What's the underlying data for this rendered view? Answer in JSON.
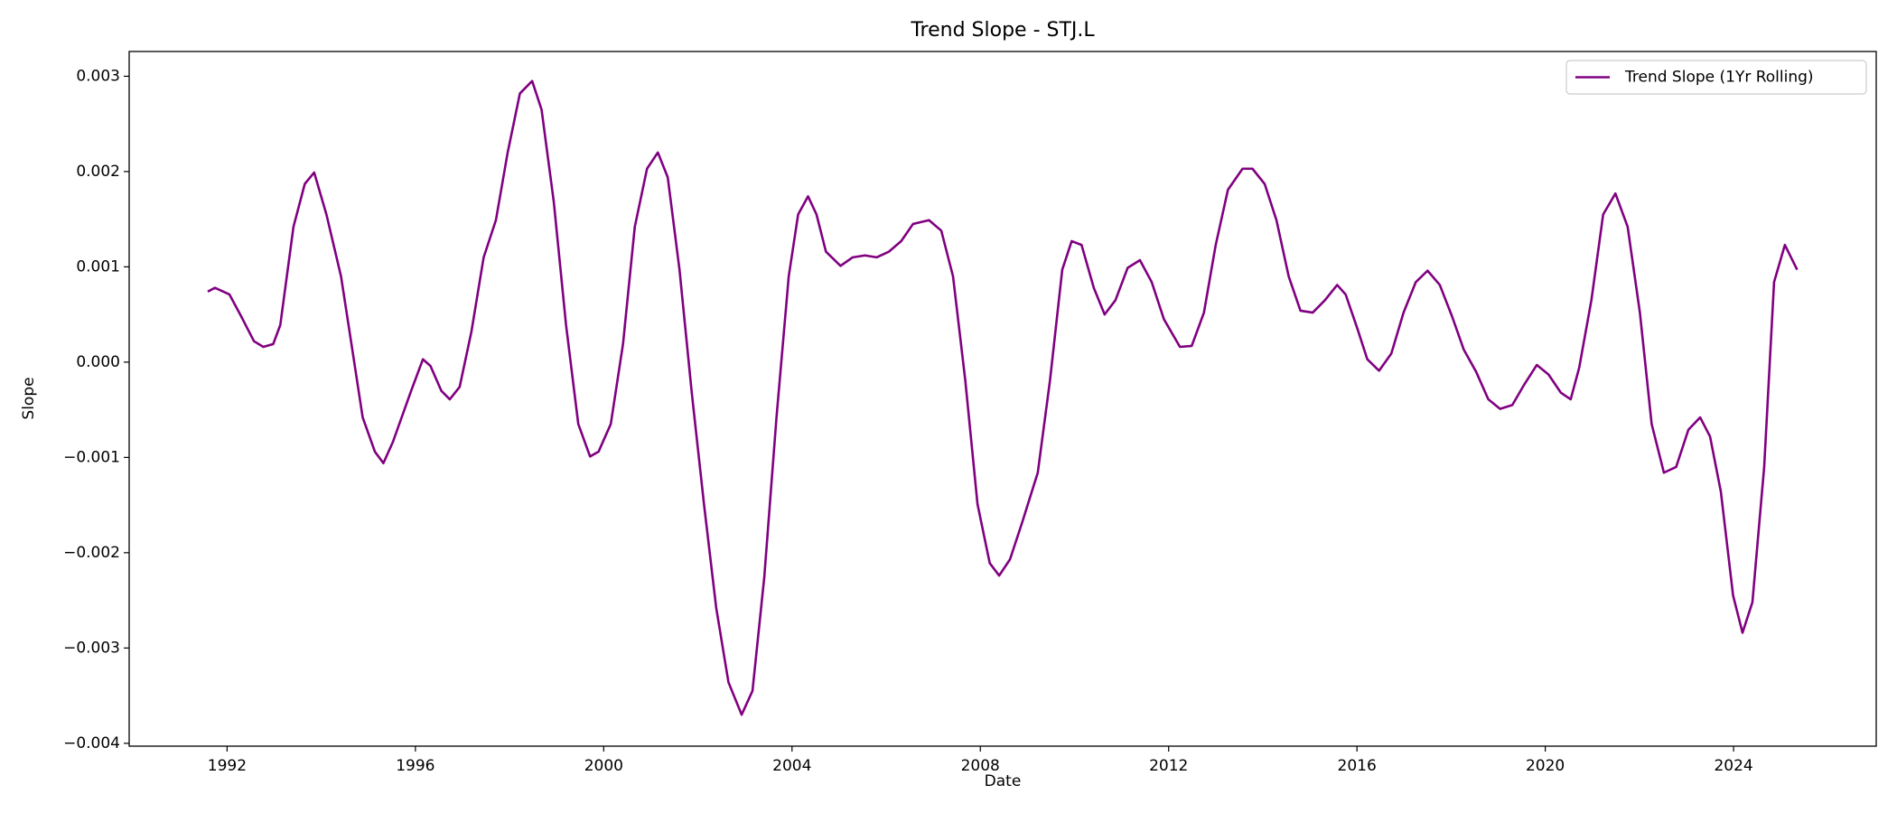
{
  "chart_data": {
    "type": "line",
    "title": "Trend Slope - STJ.L",
    "xlabel": "Date",
    "ylabel": "Slope",
    "x": [
      1991.59,
      1991.74,
      1992.05,
      1992.3,
      1992.57,
      1992.77,
      1992.98,
      1993.13,
      1993.41,
      1993.65,
      1993.85,
      1994.11,
      1994.42,
      1994.62,
      1994.88,
      1995.14,
      1995.32,
      1995.52,
      1995.91,
      1996.16,
      1996.32,
      1996.55,
      1996.73,
      1996.94,
      1997.19,
      1997.45,
      1997.71,
      1997.96,
      1998.22,
      1998.48,
      1998.68,
      1998.94,
      1999.2,
      1999.46,
      1999.71,
      1999.89,
      2000.15,
      2000.41,
      2000.66,
      2000.92,
      2001.15,
      2001.36,
      2001.61,
      2001.87,
      2002.13,
      2002.39,
      2002.65,
      2002.93,
      2003.16,
      2003.41,
      2003.67,
      2003.93,
      2004.13,
      2004.34,
      2004.52,
      2004.72,
      2005.03,
      2005.29,
      2005.55,
      2005.8,
      2006.06,
      2006.32,
      2006.57,
      2006.91,
      2007.17,
      2007.42,
      2007.68,
      2007.94,
      2008.2,
      2008.4,
      2008.63,
      2008.89,
      2009.22,
      2009.48,
      2009.74,
      2009.94,
      2010.15,
      2010.41,
      2010.64,
      2010.87,
      2011.13,
      2011.39,
      2011.64,
      2011.9,
      2012.24,
      2012.49,
      2012.75,
      2013.0,
      2013.26,
      2013.57,
      2013.78,
      2014.04,
      2014.29,
      2014.55,
      2014.8,
      2015.06,
      2015.32,
      2015.58,
      2015.76,
      2016.01,
      2016.22,
      2016.47,
      2016.73,
      2016.99,
      2017.25,
      2017.5,
      2017.76,
      2018.02,
      2018.27,
      2018.53,
      2018.79,
      2019.04,
      2019.3,
      2019.56,
      2019.82,
      2020.07,
      2020.33,
      2020.54,
      2020.72,
      2020.98,
      2021.23,
      2021.49,
      2021.75,
      2022.01,
      2022.26,
      2022.52,
      2022.78,
      2023.04,
      2023.29,
      2023.5,
      2023.73,
      2023.99,
      2024.19,
      2024.4,
      2024.65,
      2024.86,
      2025.09,
      2025.35
    ],
    "series": [
      {
        "name": "Trend Slope (1Yr Rolling)",
        "color": "#800080",
        "values": [
          0.00074,
          0.00078,
          0.00071,
          0.00048,
          0.00022,
          0.00016,
          0.00019,
          0.00039,
          0.00142,
          0.00187,
          0.00199,
          0.00155,
          0.0009,
          0.00026,
          -0.00058,
          -0.00094,
          -0.00106,
          -0.00084,
          -0.0003,
          3e-05,
          -4e-05,
          -0.0003,
          -0.00039,
          -0.00026,
          0.00032,
          0.0011,
          0.00149,
          0.0022,
          0.00282,
          0.00295,
          0.00265,
          0.00168,
          0.00039,
          -0.00065,
          -0.00099,
          -0.00094,
          -0.00065,
          0.00019,
          0.00142,
          0.00203,
          0.0022,
          0.00194,
          0.00097,
          -0.00032,
          -0.00149,
          -0.00258,
          -0.00336,
          -0.0037,
          -0.00345,
          -0.00226,
          -0.00058,
          0.0009,
          0.00155,
          0.00174,
          0.00155,
          0.00116,
          0.00101,
          0.0011,
          0.00112,
          0.0011,
          0.00116,
          0.00127,
          0.00145,
          0.00149,
          0.00138,
          0.0009,
          -0.00019,
          -0.00149,
          -0.00211,
          -0.00224,
          -0.00207,
          -0.00168,
          -0.00116,
          -0.00019,
          0.00097,
          0.00127,
          0.00123,
          0.00078,
          0.0005,
          0.00065,
          0.00099,
          0.00107,
          0.00084,
          0.00045,
          0.00016,
          0.00017,
          0.00052,
          0.00123,
          0.00181,
          0.00203,
          0.00203,
          0.00187,
          0.00149,
          0.0009,
          0.00054,
          0.00052,
          0.00065,
          0.00081,
          0.00071,
          0.00035,
          3e-05,
          -9e-05,
          9e-05,
          0.00052,
          0.00084,
          0.00096,
          0.00081,
          0.00048,
          0.00013,
          -0.0001,
          -0.00039,
          -0.00049,
          -0.00045,
          -0.00023,
          -3e-05,
          -0.00013,
          -0.00032,
          -0.00039,
          -6e-05,
          0.00065,
          0.00155,
          0.00177,
          0.00142,
          0.00052,
          -0.00065,
          -0.00116,
          -0.0011,
          -0.00071,
          -0.00058,
          -0.00078,
          -0.00136,
          -0.00245,
          -0.00284,
          -0.00252,
          -0.0011,
          0.00084,
          0.00123,
          0.00097
        ]
      }
    ],
    "xlim": [
      1989.92,
      2027.03
    ],
    "xticks": [
      1992,
      1996,
      2000,
      2004,
      2008,
      2012,
      2016,
      2020,
      2024
    ],
    "ylim": [
      -0.00403,
      0.00326
    ],
    "yticks": [
      {
        "value": -0.004,
        "label": "−0.004"
      },
      {
        "value": -0.003,
        "label": "−0.003"
      },
      {
        "value": -0.002,
        "label": "−0.002"
      },
      {
        "value": -0.001,
        "label": "−0.001"
      },
      {
        "value": 0,
        "label": "0.000"
      },
      0.001,
      0.002,
      0.003
    ],
    "grid": false,
    "legend": "upper right"
  }
}
